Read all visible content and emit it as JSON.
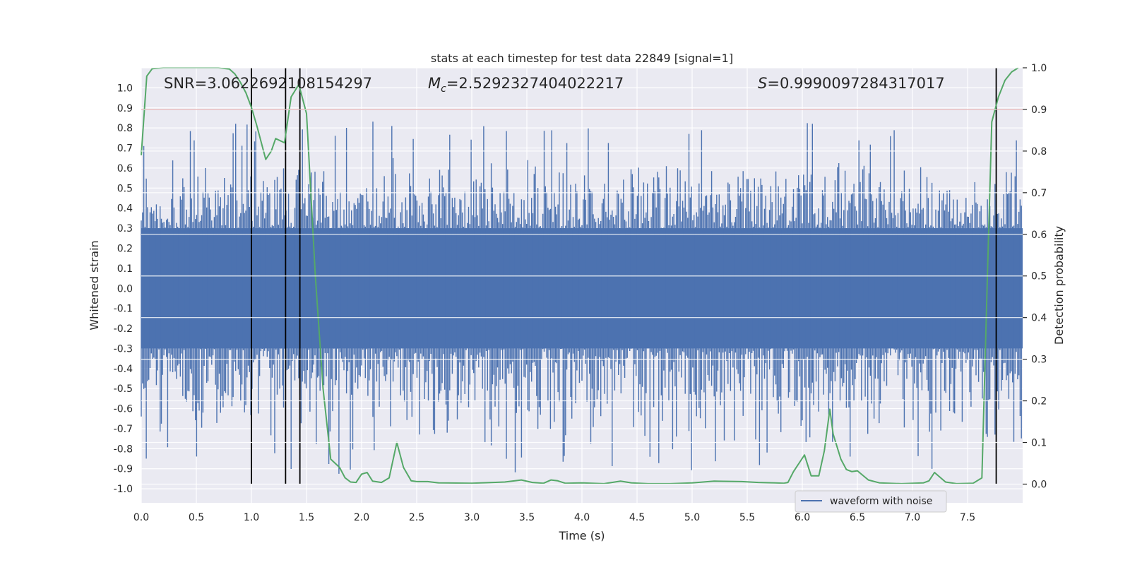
{
  "chart_data": {
    "type": "line",
    "title": "stats at each timestep for test data 22849 [signal=1]",
    "xlabel": "Time (s)",
    "ylabel": "Whitened strain",
    "y2label": "Detection probability",
    "xlim": [
      0.0,
      8.0
    ],
    "ylim": [
      -1.07,
      1.1
    ],
    "y2lim": [
      -0.045,
      1.0
    ],
    "xticks": [
      "0.0",
      "0.5",
      "1.0",
      "1.5",
      "2.0",
      "2.5",
      "3.0",
      "3.5",
      "4.0",
      "4.5",
      "5.0",
      "5.5",
      "6.0",
      "6.5",
      "7.0",
      "7.5"
    ],
    "yticks": [
      "1.0",
      "0.9",
      "0.8",
      "0.7",
      "0.6",
      "0.5",
      "0.4",
      "0.3",
      "0.2",
      "0.1",
      "0.0",
      "-0.1",
      "-0.2",
      "-0.3",
      "-0.4",
      "-0.5",
      "-0.6",
      "-0.7",
      "-0.8",
      "-0.9",
      "-1.0"
    ],
    "y2ticks": [
      "1.0",
      "0.9",
      "0.8",
      "0.7",
      "0.6",
      "0.5",
      "0.4",
      "0.3",
      "0.2",
      "0.1",
      "0.0"
    ],
    "annotations": {
      "snr": "SNR=3.0622692108154297",
      "mc_symbol": "M",
      "mc_sub": "c",
      "mc_value": "=2.5292327404022217",
      "s_symbol": "S",
      "s_value": "=0.9990097284317017"
    },
    "legend": {
      "label": "waveform with noise",
      "position": "lower-right"
    },
    "threshold": {
      "value": 0.9,
      "axis": "right",
      "color": "#c44e52"
    },
    "detection_times": [
      1.0,
      1.31,
      1.44,
      7.76
    ],
    "waveform_series": {
      "name": "waveform with noise",
      "color": "#4c72b0",
      "n_samples": 700,
      "core_amplitude": 0.3,
      "spike_range": [
        -0.99,
        0.84
      ]
    },
    "probability_series": {
      "name": "detection probability",
      "color": "#55a868",
      "x": [
        0.0,
        0.05,
        0.1,
        0.2,
        0.3,
        0.4,
        0.5,
        0.6,
        0.7,
        0.8,
        0.85,
        0.9,
        0.95,
        1.0,
        1.05,
        1.1,
        1.13,
        1.18,
        1.22,
        1.3,
        1.36,
        1.43,
        1.5,
        1.58,
        1.65,
        1.72,
        1.8,
        1.85,
        1.9,
        1.95,
        2.0,
        2.05,
        2.1,
        2.18,
        2.25,
        2.32,
        2.38,
        2.45,
        2.5,
        2.6,
        2.7,
        3.0,
        3.3,
        3.45,
        3.55,
        3.65,
        3.72,
        3.78,
        3.85,
        4.0,
        4.2,
        4.35,
        4.45,
        4.6,
        4.8,
        5.0,
        5.2,
        5.45,
        5.6,
        5.75,
        5.83,
        5.87,
        5.92,
        5.97,
        6.02,
        6.08,
        6.15,
        6.2,
        6.25,
        6.28,
        6.35,
        6.4,
        6.45,
        6.5,
        6.6,
        6.7,
        6.9,
        7.1,
        7.15,
        7.2,
        7.3,
        7.4,
        7.55,
        7.63,
        7.68,
        7.72,
        7.78,
        7.84,
        7.9,
        7.96
      ],
      "y": [
        0.79,
        0.98,
        0.998,
        1.0,
        1.0,
        1.0,
        1.0,
        1.0,
        1.0,
        0.997,
        0.985,
        0.965,
        0.94,
        0.905,
        0.86,
        0.81,
        0.78,
        0.8,
        0.83,
        0.82,
        0.93,
        0.96,
        0.89,
        0.5,
        0.23,
        0.06,
        0.04,
        0.015,
        0.005,
        0.004,
        0.024,
        0.028,
        0.007,
        0.004,
        0.015,
        0.1,
        0.04,
        0.008,
        0.006,
        0.006,
        0.003,
        0.002,
        0.005,
        0.01,
        0.004,
        0.002,
        0.01,
        0.008,
        0.002,
        0.003,
        0.001,
        0.007,
        0.003,
        0.001,
        0.001,
        0.003,
        0.007,
        0.006,
        0.004,
        0.003,
        0.002,
        0.004,
        0.03,
        0.05,
        0.07,
        0.02,
        0.02,
        0.08,
        0.18,
        0.12,
        0.06,
        0.035,
        0.03,
        0.032,
        0.01,
        0.003,
        0.001,
        0.003,
        0.008,
        0.028,
        0.005,
        0.001,
        0.002,
        0.015,
        0.5,
        0.87,
        0.93,
        0.97,
        0.99,
        1.0
      ]
    }
  }
}
